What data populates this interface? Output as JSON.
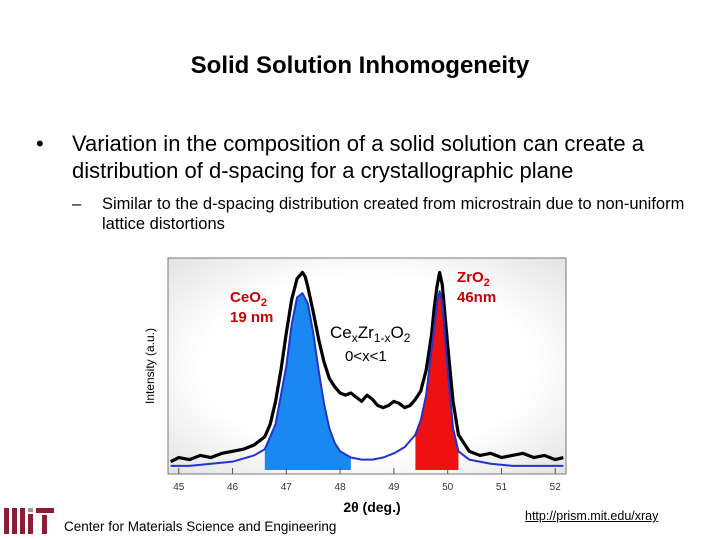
{
  "slide": {
    "title": "Solid Solution Inhomogeneity",
    "bullet_symbol": "•",
    "bullet": "Variation in the composition of a solid solution can create a distribution of d-spacing for a crystallographic plane",
    "sub_symbol": "–",
    "sub_bullet": "Similar to the d-spacing distribution created from microstrain due to non-uniform lattice distortions"
  },
  "footer": {
    "institution": "Center for Materials Science and Engineering",
    "url": "http://prism.mit.edu/xray"
  },
  "colors": {
    "ceo2_fill": "#1a88f0",
    "zro2_fill": "#ee1111",
    "fit_line": "#2233cc",
    "data_line": "#000000",
    "label_red": "#cc0000"
  },
  "chart_data": {
    "type": "line",
    "title": "",
    "xlabel": "2θ (deg.)",
    "ylabel": "Intensity (a.u.)",
    "xlim": [
      44.8,
      52.2
    ],
    "ylim": [
      0,
      100
    ],
    "x_ticks": [
      45,
      46,
      47,
      48,
      49,
      50,
      51,
      52
    ],
    "y_ticks_labeled": false,
    "grid": false,
    "annotations": {
      "ceo2_line1": "Ce",
      "ceo2_sub1": "O",
      "ceo2_sub2": "2",
      "ceo2_size": "19 nm",
      "zro2_line1": "Zr",
      "zro2_sub1": "O",
      "zro2_sub2": "2",
      "zro2_size": "46nm",
      "mix_ce": "Ce",
      "mix_x": "x",
      "mix_zr": "Zr",
      "mix_1x": "1-x",
      "mix_o": "O",
      "mix_2": "2",
      "mix_range": "0<x<1"
    },
    "series": [
      {
        "color": "#000000",
        "x": [
          44.85,
          45.0,
          45.2,
          45.4,
          45.6,
          45.8,
          46.0,
          46.2,
          46.4,
          46.6,
          46.7,
          46.8,
          46.9,
          47.0,
          47.1,
          47.2,
          47.3,
          47.35,
          47.4,
          47.5,
          47.6,
          47.7,
          47.8,
          47.9,
          48.0,
          48.1,
          48.2,
          48.3,
          48.4,
          48.5,
          48.6,
          48.7,
          48.8,
          48.9,
          49.0,
          49.1,
          49.2,
          49.3,
          49.4,
          49.5,
          49.6,
          49.7,
          49.75,
          49.8,
          49.85,
          49.9,
          50.0,
          50.1,
          50.2,
          50.4,
          50.6,
          50.8,
          51.0,
          51.2,
          51.4,
          51.6,
          51.8,
          52.0,
          52.15
        ],
        "y": [
          4,
          6,
          5,
          7,
          6,
          8,
          9,
          10,
          12,
          16,
          22,
          33,
          48,
          66,
          82,
          92,
          95,
          93,
          88,
          76,
          63,
          52,
          44,
          40,
          37,
          36,
          37,
          35,
          33,
          36,
          34,
          31,
          30,
          31,
          33,
          32,
          30,
          31,
          34,
          38,
          48,
          65,
          78,
          88,
          95,
          89,
          60,
          33,
          17,
          9,
          7,
          8,
          6,
          7,
          8,
          6,
          7,
          5,
          6
        ]
      },
      {
        "color": "#2233cc",
        "x": [
          44.85,
          45.2,
          45.6,
          46.0,
          46.4,
          46.6,
          46.8,
          47.0,
          47.1,
          47.2,
          47.3,
          47.4,
          47.5,
          47.6,
          47.7,
          47.8,
          47.9,
          48.0,
          48.2,
          48.4,
          48.6,
          48.8,
          49.0,
          49.2,
          49.4,
          49.5,
          49.6,
          49.7,
          49.8,
          49.85,
          49.9,
          50.0,
          50.1,
          50.2,
          50.4,
          50.8,
          51.2,
          51.6,
          52.15
        ],
        "y": [
          2,
          2,
          3,
          4,
          7,
          10,
          22,
          50,
          70,
          83,
          85,
          80,
          66,
          48,
          32,
          20,
          13,
          9,
          6,
          5,
          5,
          6,
          8,
          11,
          17,
          24,
          36,
          58,
          80,
          86,
          81,
          48,
          20,
          9,
          5,
          3,
          2,
          2,
          2
        ]
      }
    ]
  }
}
